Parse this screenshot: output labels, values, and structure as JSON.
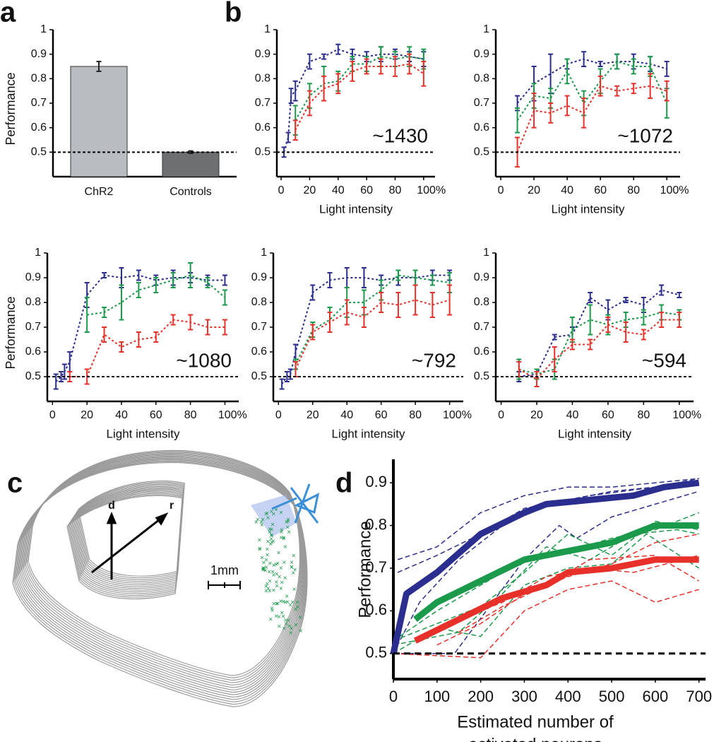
{
  "chart_data": [
    {
      "type": "bar",
      "panel": "a",
      "ylabel": "Performance",
      "categories": [
        "ChR2",
        "Controls"
      ],
      "values": [
        0.85,
        0.5
      ],
      "errors": [
        0.02,
        0.005
      ],
      "colors": [
        "#b9bcc0",
        "#6d6f71"
      ],
      "ylim": [
        0.4,
        1
      ],
      "yticks": [
        0.5,
        0.6,
        0.7,
        0.8,
        0.9,
        1
      ],
      "reference_line": 0.5
    },
    {
      "type": "line",
      "panel": "b",
      "annotation": "~1430",
      "xlabel": "Light intensity",
      "x": [
        2,
        5,
        7,
        10,
        20,
        30,
        40,
        50,
        60,
        70,
        80,
        90,
        100
      ],
      "xlim": [
        -3,
        108
      ],
      "ylim": [
        0.4,
        1
      ],
      "xticks": [
        0,
        20,
        40,
        60,
        80,
        {
          "value": 100,
          "label": "100%"
        }
      ],
      "yticks": [
        0.5,
        0.6,
        0.7,
        0.8,
        0.9,
        1
      ],
      "reference_line": 0.5,
      "series": [
        {
          "color": "#2b2e8f",
          "values": [
            0.5,
            0.56,
            0.73,
            0.75,
            0.87,
            0.89,
            0.92,
            0.9,
            0.89,
            0.9,
            0.9,
            0.89,
            0.88
          ],
          "errors": [
            0.02,
            0.02,
            0.03,
            0.04,
            0.03,
            0.01,
            0.02,
            0.02,
            0.02,
            0.03,
            0.02,
            0.02,
            0.03
          ]
        },
        {
          "color": "#1a9a4a",
          "values": [
            null,
            null,
            null,
            0.63,
            0.73,
            0.78,
            0.79,
            0.86,
            0.86,
            0.89,
            0.88,
            0.89,
            0.88
          ],
          "errors": [
            null,
            null,
            null,
            0.06,
            0.05,
            0.07,
            0.04,
            0.03,
            0.03,
            0.04,
            0.03,
            0.04,
            0.04
          ]
        },
        {
          "color": "#e8302a",
          "values": [
            null,
            null,
            null,
            0.59,
            0.7,
            0.76,
            0.78,
            0.83,
            0.85,
            0.85,
            0.85,
            0.86,
            0.82
          ],
          "errors": [
            null,
            null,
            null,
            0.04,
            0.05,
            0.05,
            0.04,
            0.04,
            0.03,
            0.03,
            0.04,
            0.04,
            0.05
          ]
        }
      ]
    },
    {
      "type": "line",
      "annotation": "~1072",
      "xlabel": "Light intensity",
      "x": [
        10,
        20,
        30,
        40,
        50,
        60,
        70,
        80,
        90,
        100
      ],
      "xlim": [
        -3,
        108
      ],
      "ylim": [
        0.4,
        1
      ],
      "xticks": [
        0,
        20,
        40,
        60,
        80,
        {
          "value": 100,
          "label": "100%"
        }
      ],
      "yticks": [
        0.5,
        0.6,
        0.7,
        0.8,
        0.9,
        1
      ],
      "reference_line": 0.5,
      "series": [
        {
          "color": "#2b2e8f",
          "values": [
            0.7,
            0.78,
            0.82,
            0.86,
            0.88,
            0.86,
            0.87,
            0.87,
            0.86,
            0.84
          ],
          "errors": [
            0.03,
            0.07,
            0.08,
            0.02,
            0.03,
            0.01,
            0.03,
            0.03,
            0.03,
            0.03
          ]
        },
        {
          "color": "#1a9a4a",
          "values": [
            0.63,
            0.73,
            0.72,
            0.83,
            0.7,
            0.79,
            0.87,
            0.85,
            0.85,
            0.7
          ],
          "errors": [
            0.05,
            0.05,
            0.04,
            0.05,
            0.05,
            0.05,
            0.03,
            0.03,
            0.04,
            0.06
          ]
        },
        {
          "color": "#e8302a",
          "values": [
            0.5,
            0.67,
            0.66,
            0.69,
            0.66,
            0.77,
            0.75,
            0.76,
            0.77,
            0.75
          ],
          "errors": [
            0.06,
            0.07,
            0.04,
            0.04,
            0.06,
            0.04,
            0.02,
            0.02,
            0.05,
            0.04
          ]
        }
      ]
    },
    {
      "type": "line",
      "ylabel": "Performance",
      "annotation": "~1080",
      "xlabel": "Light intensity",
      "x": [
        2,
        5,
        7,
        10,
        20,
        30,
        40,
        50,
        60,
        70,
        80,
        90,
        100
      ],
      "xlim": [
        -3,
        108
      ],
      "ylim": [
        0.4,
        1
      ],
      "xticks": [
        0,
        20,
        40,
        60,
        80,
        {
          "value": 100,
          "label": "100%"
        }
      ],
      "yticks": [
        0.5,
        0.6,
        0.7,
        0.8,
        0.9,
        1
      ],
      "reference_line": 0.5,
      "series": [
        {
          "color": "#2b2e8f",
          "values": [
            0.48,
            0.5,
            0.52,
            0.56,
            0.83,
            0.91,
            0.9,
            0.91,
            0.89,
            0.9,
            0.9,
            0.89,
            0.89
          ],
          "errors": [
            0.03,
            0.02,
            0.03,
            0.04,
            0.05,
            0.01,
            0.04,
            0.02,
            0.02,
            0.03,
            0.02,
            0.02,
            0.02
          ]
        },
        {
          "color": "#1a9a4a",
          "values": [
            null,
            null,
            null,
            null,
            0.75,
            0.76,
            0.8,
            0.85,
            0.87,
            0.89,
            0.91,
            0.88,
            0.82
          ],
          "errors": [
            null,
            null,
            null,
            null,
            0.07,
            0.02,
            0.07,
            0.03,
            0.03,
            0.03,
            0.05,
            0.02,
            0.03
          ]
        },
        {
          "color": "#e8302a",
          "values": [
            null,
            null,
            null,
            0.5,
            0.5,
            0.67,
            0.62,
            0.65,
            0.66,
            0.73,
            0.72,
            0.7,
            0.7
          ],
          "errors": [
            null,
            null,
            null,
            0.02,
            0.03,
            0.03,
            0.02,
            0.03,
            0.02,
            0.02,
            0.03,
            0.03,
            0.03
          ]
        }
      ]
    },
    {
      "type": "line",
      "annotation": "~792",
      "xlabel": "Light intensity",
      "x": [
        2,
        5,
        7,
        10,
        20,
        30,
        40,
        50,
        60,
        70,
        80,
        90,
        100
      ],
      "xlim": [
        -3,
        108
      ],
      "ylim": [
        0.4,
        1
      ],
      "xticks": [
        0,
        20,
        40,
        60,
        80,
        {
          "value": 100,
          "label": "100%"
        }
      ],
      "yticks": [
        0.5,
        0.6,
        0.7,
        0.8,
        0.9,
        1
      ],
      "reference_line": 0.5,
      "series": [
        {
          "color": "#2b2e8f",
          "values": [
            0.47,
            0.5,
            0.51,
            0.6,
            0.84,
            0.89,
            0.9,
            0.9,
            0.89,
            0.9,
            0.9,
            0.91,
            0.91
          ],
          "errors": [
            0.02,
            0.02,
            0.02,
            0.03,
            0.03,
            0.03,
            0.04,
            0.04,
            0.02,
            0.03,
            0.03,
            0.02,
            0.02
          ]
        },
        {
          "color": "#1a9a4a",
          "values": [
            null,
            null,
            null,
            0.55,
            0.69,
            0.73,
            0.8,
            0.8,
            0.85,
            0.91,
            0.9,
            0.89,
            0.88
          ],
          "errors": [
            null,
            null,
            null,
            0.02,
            0.03,
            0.05,
            0.06,
            0.05,
            0.04,
            0.02,
            0.03,
            0.02,
            0.04
          ]
        },
        {
          "color": "#e8302a",
          "values": [
            null,
            null,
            null,
            0.53,
            0.68,
            0.72,
            0.76,
            0.74,
            0.8,
            0.79,
            0.81,
            0.79,
            0.81
          ],
          "errors": [
            null,
            null,
            null,
            0.03,
            0.03,
            0.04,
            0.05,
            0.04,
            0.04,
            0.05,
            0.06,
            0.05,
            0.06
          ]
        }
      ]
    },
    {
      "type": "line",
      "annotation": "~594",
      "xlabel": "Light intensity",
      "x": [
        10,
        20,
        30,
        40,
        50,
        60,
        70,
        80,
        90,
        100
      ],
      "xlim": [
        -3,
        108
      ],
      "ylim": [
        0.4,
        1
      ],
      "xticks": [
        0,
        20,
        40,
        60,
        80,
        {
          "value": 100,
          "label": "100%"
        }
      ],
      "yticks": [
        0.5,
        0.6,
        0.7,
        0.8,
        0.9,
        1
      ],
      "reference_line": 0.5,
      "series": [
        {
          "color": "#2b2e8f",
          "values": [
            0.5,
            0.51,
            0.66,
            0.67,
            0.82,
            0.77,
            0.81,
            0.79,
            0.85,
            0.83
          ],
          "errors": [
            0.02,
            0.02,
            0.01,
            0.03,
            0.02,
            0.04,
            0.01,
            0.03,
            0.02,
            0.01
          ]
        },
        {
          "color": "#1a9a4a",
          "values": [
            0.53,
            0.51,
            0.53,
            0.69,
            0.73,
            0.71,
            0.73,
            0.74,
            0.76,
            0.75
          ],
          "errors": [
            0.04,
            0.02,
            0.04,
            0.05,
            0.06,
            0.04,
            0.03,
            0.03,
            0.03,
            0.02
          ]
        },
        {
          "color": "#e8302a",
          "values": [
            0.53,
            0.49,
            0.57,
            0.63,
            0.63,
            0.71,
            0.68,
            0.67,
            0.73,
            0.73
          ],
          "errors": [
            0.03,
            0.03,
            0.05,
            0.02,
            0.02,
            0.03,
            0.04,
            0.02,
            0.03,
            0.03
          ]
        }
      ]
    },
    {
      "type": "line",
      "panel": "d",
      "ylabel": "Performance",
      "xlabel": [
        "Estimated number of",
        "activated neurons"
      ],
      "xlim": [
        0,
        715
      ],
      "ylim": [
        0.44,
        0.955
      ],
      "xticks": [
        0,
        100,
        200,
        300,
        400,
        500,
        600,
        700
      ],
      "yticks": [
        0.5,
        0.6,
        0.7,
        0.8,
        0.9
      ],
      "reference_line": 0.5,
      "series": [
        {
          "color": "#2b2e8f",
          "dashed": true,
          "width": 1.5,
          "x": [
            10,
            100,
            200,
            300,
            400,
            500,
            600,
            700
          ],
          "values": [
            0.72,
            0.75,
            0.83,
            0.87,
            0.89,
            0.89,
            0.9,
            0.91
          ]
        },
        {
          "color": "#2b2e8f",
          "dashed": true,
          "width": 1.5,
          "x": [
            10,
            100,
            200,
            300,
            400,
            500,
            700
          ],
          "values": [
            0.69,
            0.73,
            0.78,
            0.84,
            0.86,
            0.88,
            0.9
          ]
        },
        {
          "color": "#2b2e8f",
          "dashed": true,
          "width": 1.5,
          "x": [
            0,
            60,
            150,
            250,
            350,
            450,
            600,
            700
          ],
          "values": [
            0.5,
            0.62,
            0.72,
            0.8,
            0.85,
            0.87,
            0.89,
            0.91
          ]
        },
        {
          "color": "#2b2e8f",
          "dashed": true,
          "width": 1.5,
          "x": [
            0,
            140,
            300,
            380,
            420,
            500,
            600,
            700
          ],
          "values": [
            0.5,
            0.5,
            0.72,
            0.8,
            0.77,
            0.82,
            0.85,
            0.88
          ]
        },
        {
          "color": "#1a9a4a",
          "dashed": true,
          "width": 1.5,
          "x": [
            0,
            100,
            200,
            300,
            400,
            500,
            600,
            700
          ],
          "values": [
            0.53,
            0.6,
            0.66,
            0.72,
            0.74,
            0.77,
            0.79,
            0.83
          ]
        },
        {
          "color": "#1a9a4a",
          "dashed": true,
          "width": 1.5,
          "x": [
            0,
            150,
            250,
            350,
            450,
            550,
            650,
            700
          ],
          "values": [
            0.52,
            0.55,
            0.64,
            0.75,
            0.72,
            0.78,
            0.79,
            0.78
          ]
        },
        {
          "color": "#1a9a4a",
          "dashed": true,
          "width": 1.5,
          "x": [
            0,
            100,
            200,
            300,
            400,
            500,
            580,
            700
          ],
          "values": [
            0.5,
            0.56,
            0.54,
            0.66,
            0.7,
            0.71,
            0.78,
            0.7
          ]
        },
        {
          "color": "#1a9a4a",
          "dashed": true,
          "width": 1.5,
          "x": [
            0,
            200,
            300,
            400,
            500,
            600,
            700
          ],
          "values": [
            0.53,
            0.61,
            0.69,
            0.78,
            0.73,
            0.81,
            0.79
          ]
        },
        {
          "color": "#e8302a",
          "dashed": true,
          "width": 1.5,
          "x": [
            0,
            200,
            300,
            400,
            500,
            600,
            700
          ],
          "values": [
            0.5,
            0.49,
            0.6,
            0.65,
            0.67,
            0.62,
            0.65
          ]
        },
        {
          "color": "#e8302a",
          "dashed": true,
          "width": 1.5,
          "x": [
            50,
            150,
            250,
            350,
            450,
            550,
            700
          ],
          "values": [
            0.53,
            0.58,
            0.62,
            0.68,
            0.7,
            0.69,
            0.73
          ]
        },
        {
          "color": "#e8302a",
          "dashed": true,
          "width": 1.5,
          "x": [
            100,
            200,
            300,
            400,
            500,
            600,
            700
          ],
          "values": [
            0.52,
            0.57,
            0.64,
            0.68,
            0.71,
            0.76,
            0.78
          ]
        },
        {
          "color": "#e8302a",
          "dashed": true,
          "width": 1.5,
          "x": [
            150,
            250,
            350,
            450,
            600,
            700
          ],
          "values": [
            0.55,
            0.61,
            0.66,
            0.72,
            0.73,
            0.67
          ]
        },
        {
          "color": "#2b2e8f",
          "width": 9,
          "x": [
            0,
            30,
            100,
            200,
            300,
            350,
            450,
            550,
            620,
            700
          ],
          "values": [
            0.5,
            0.64,
            0.69,
            0.78,
            0.83,
            0.85,
            0.86,
            0.87,
            0.89,
            0.9
          ]
        },
        {
          "color": "#1a9a4a",
          "width": 9,
          "x": [
            50,
            100,
            200,
            300,
            400,
            500,
            600,
            700
          ],
          "values": [
            0.58,
            0.62,
            0.67,
            0.72,
            0.74,
            0.76,
            0.8,
            0.8
          ]
        },
        {
          "color": "#e8302a",
          "width": 9,
          "x": [
            50,
            150,
            250,
            350,
            400,
            500,
            550,
            600,
            700
          ],
          "values": [
            0.53,
            0.58,
            0.63,
            0.66,
            0.69,
            0.7,
            0.71,
            0.72,
            0.72
          ]
        }
      ]
    }
  ],
  "diagram": {
    "panel": "c",
    "axis_labels": [
      "d",
      "r"
    ],
    "scale_bar": "1mm"
  }
}
